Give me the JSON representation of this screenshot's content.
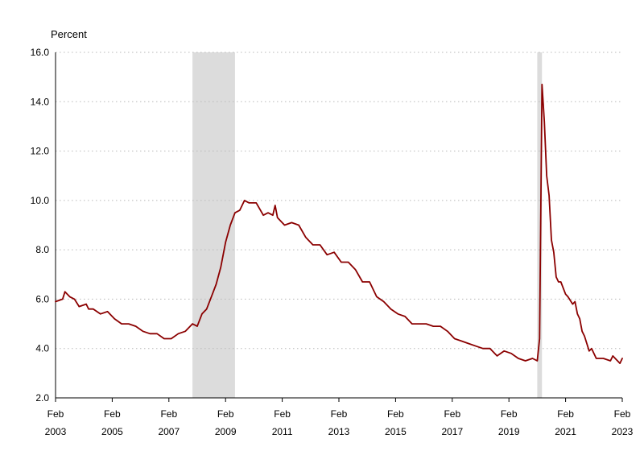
{
  "chart_data": {
    "type": "line",
    "ylabel": "Percent",
    "ylim": [
      2.0,
      16.0
    ],
    "y_ticks": [
      "2.0",
      "4.0",
      "6.0",
      "8.0",
      "10.0",
      "12.0",
      "14.0",
      "16.0"
    ],
    "xlim": [
      "2003-02",
      "2023-02"
    ],
    "x_ticks": [
      {
        "month": "Feb",
        "year": "2003",
        "date": "2003-02"
      },
      {
        "month": "Feb",
        "year": "2005",
        "date": "2005-02"
      },
      {
        "month": "Feb",
        "year": "2007",
        "date": "2007-02"
      },
      {
        "month": "Feb",
        "year": "2009",
        "date": "2009-02"
      },
      {
        "month": "Feb",
        "year": "2011",
        "date": "2011-02"
      },
      {
        "month": "Feb",
        "year": "2013",
        "date": "2013-02"
      },
      {
        "month": "Feb",
        "year": "2015",
        "date": "2015-02"
      },
      {
        "month": "Feb",
        "year": "2017",
        "date": "2017-02"
      },
      {
        "month": "Feb",
        "year": "2019",
        "date": "2019-02"
      },
      {
        "month": "Feb",
        "year": "2021",
        "date": "2021-02"
      },
      {
        "month": "Feb",
        "year": "2023",
        "date": "2023-02"
      }
    ],
    "grid": true,
    "recessions": [
      {
        "start": "2007-12",
        "end": "2009-06"
      },
      {
        "start": "2020-02",
        "end": "2020-04"
      }
    ],
    "colors": {
      "line": "#8b0000",
      "recession": "#dcdcdc"
    },
    "series": [
      {
        "x": [
          "2003-02",
          "2003-05",
          "2003-06",
          "2003-08",
          "2003-10",
          "2003-12",
          "2004-03",
          "2004-04",
          "2004-06",
          "2004-09",
          "2004-12",
          "2005-03",
          "2005-06",
          "2005-09",
          "2005-12",
          "2006-03",
          "2006-06",
          "2006-09",
          "2006-12",
          "2007-03",
          "2007-06",
          "2007-09",
          "2007-12",
          "2008-02",
          "2008-04",
          "2008-06",
          "2008-08",
          "2008-10",
          "2008-12",
          "2009-02",
          "2009-04",
          "2009-06",
          "2009-08",
          "2009-10",
          "2009-12",
          "2010-03",
          "2010-06",
          "2010-08",
          "2010-10",
          "2010-11",
          "2010-12",
          "2011-03",
          "2011-06",
          "2011-09",
          "2011-12",
          "2012-03",
          "2012-06",
          "2012-09",
          "2012-12",
          "2013-03",
          "2013-06",
          "2013-09",
          "2013-12",
          "2014-03",
          "2014-06",
          "2014-09",
          "2014-12",
          "2015-03",
          "2015-06",
          "2015-09",
          "2015-12",
          "2016-03",
          "2016-06",
          "2016-09",
          "2016-12",
          "2017-03",
          "2017-06",
          "2017-09",
          "2017-12",
          "2018-03",
          "2018-06",
          "2018-09",
          "2018-12",
          "2019-03",
          "2019-06",
          "2019-09",
          "2019-12",
          "2020-02",
          "2020-03",
          "2020-04",
          "2020-05",
          "2020-06",
          "2020-07",
          "2020-08",
          "2020-09",
          "2020-10",
          "2020-11",
          "2020-12",
          "2021-02",
          "2021-03",
          "2021-05",
          "2021-06",
          "2021-07",
          "2021-08",
          "2021-09",
          "2021-10",
          "2021-11",
          "2021-12",
          "2022-01",
          "2022-03",
          "2022-06",
          "2022-09",
          "2022-10",
          "2022-12",
          "2023-01",
          "2023-02"
        ],
        "y": [
          5.9,
          6.0,
          6.3,
          6.1,
          6.0,
          5.7,
          5.8,
          5.6,
          5.6,
          5.4,
          5.5,
          5.2,
          5.0,
          5.0,
          4.9,
          4.7,
          4.6,
          4.6,
          4.4,
          4.4,
          4.6,
          4.7,
          5.0,
          4.9,
          5.4,
          5.6,
          6.1,
          6.6,
          7.3,
          8.3,
          9.0,
          9.5,
          9.6,
          10.0,
          9.9,
          9.9,
          9.4,
          9.5,
          9.4,
          9.8,
          9.3,
          9.0,
          9.1,
          9.0,
          8.5,
          8.2,
          8.2,
          7.8,
          7.9,
          7.5,
          7.5,
          7.2,
          6.7,
          6.7,
          6.1,
          5.9,
          5.6,
          5.4,
          5.3,
          5.0,
          5.0,
          5.0,
          4.9,
          4.9,
          4.7,
          4.4,
          4.3,
          4.2,
          4.1,
          4.0,
          4.0,
          3.7,
          3.9,
          3.8,
          3.6,
          3.5,
          3.6,
          3.5,
          4.4,
          14.7,
          13.2,
          11.0,
          10.2,
          8.4,
          7.9,
          6.9,
          6.7,
          6.7,
          6.2,
          6.1,
          5.8,
          5.9,
          5.4,
          5.2,
          4.7,
          4.5,
          4.2,
          3.9,
          4.0,
          3.6,
          3.6,
          3.5,
          3.7,
          3.5,
          3.4,
          3.6
        ]
      }
    ]
  }
}
